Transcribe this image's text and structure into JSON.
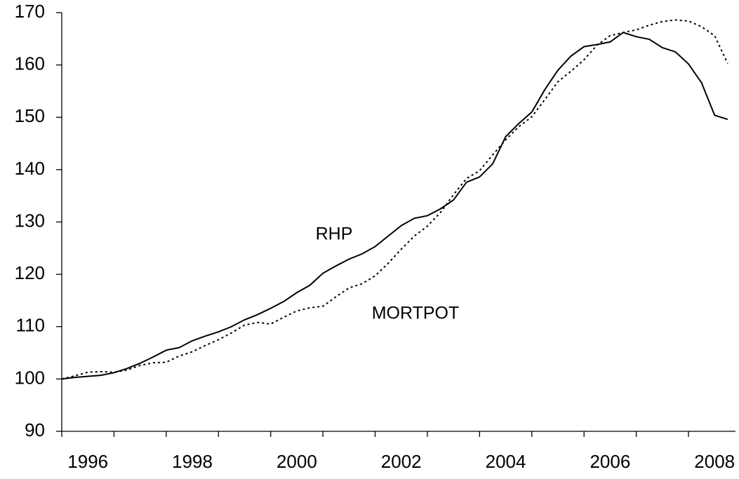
{
  "chart_data": {
    "type": "line",
    "x": [
      1996,
      1996.25,
      1996.5,
      1996.75,
      1997,
      1997.25,
      1997.5,
      1997.75,
      1998,
      1998.25,
      1998.5,
      1998.75,
      1999,
      1999.25,
      1999.5,
      1999.75,
      2000,
      2000.25,
      2000.5,
      2000.75,
      2001,
      2001.25,
      2001.5,
      2001.75,
      2002,
      2002.25,
      2002.5,
      2002.75,
      2003,
      2003.25,
      2003.5,
      2003.75,
      2004,
      2004.25,
      2004.5,
      2004.75,
      2005,
      2005.25,
      2005.5,
      2005.75,
      2006,
      2006.25,
      2006.5,
      2006.75,
      2007,
      2007.25,
      2007.5,
      2007.75,
      2008,
      2008.25,
      2008.5,
      2008.75
    ],
    "series": [
      {
        "name": "RHP",
        "color": "#000000",
        "dash": "none",
        "values": [
          100,
          100.3,
          100.5,
          100.7,
          101.2,
          102,
          103,
          104.2,
          105.5,
          106,
          107.3,
          108.2,
          109,
          110,
          111.3,
          112.3,
          113.5,
          114.8,
          116.5,
          117.9,
          120.2,
          121.6,
          122.9,
          123.9,
          125.3,
          127.3,
          129.3,
          130.7,
          131.2,
          132.5,
          134.2,
          137.6,
          138.6,
          141.1,
          146.3,
          148.8,
          151,
          155.3,
          159,
          161.7,
          163.5,
          163.9,
          164.4,
          166.2,
          165.4,
          164.9,
          163.3,
          162.5,
          160.2,
          156.6,
          150.4,
          149.6
        ]
      },
      {
        "name": "MORTPOT",
        "color": "#000000",
        "dash": "3 4",
        "values": [
          100,
          100.6,
          101.3,
          101.4,
          101.3,
          101.7,
          102.6,
          103.1,
          103.2,
          104.4,
          105.2,
          106.4,
          107.5,
          108.8,
          110.3,
          110.8,
          110.5,
          111.8,
          113,
          113.6,
          113.9,
          115.7,
          117.4,
          118.2,
          119.7,
          122.1,
          124.8,
          127.3,
          129.2,
          131.8,
          135.2,
          138.3,
          139.8,
          142.8,
          145.7,
          148.2,
          150.1,
          153.4,
          156.8,
          158.8,
          161,
          163.8,
          165.6,
          166.2,
          166.7,
          167.6,
          168.3,
          168.6,
          168.4,
          167.3,
          165.6,
          160.3
        ]
      }
    ],
    "xlim": [
      1996,
      2008.9
    ],
    "xticks": [
      1996,
      1998,
      2000,
      2002,
      2004,
      2006,
      2008
    ],
    "xminor_ticks": [
      1997,
      1999,
      2001,
      2003,
      2005,
      2007
    ],
    "ylim": [
      90,
      170
    ],
    "yticks": [
      90,
      100,
      110,
      120,
      130,
      140,
      150,
      160,
      170
    ],
    "grid": false
  }
}
